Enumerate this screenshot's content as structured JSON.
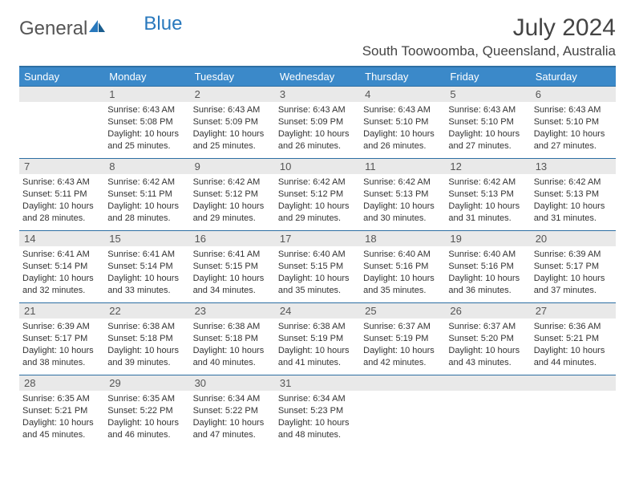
{
  "logo": {
    "text1": "General",
    "text2": "Blue"
  },
  "title": "July 2024",
  "location": "South Toowoomba, Queensland, Australia",
  "colors": {
    "header_bg": "#3b89c9",
    "header_border": "#2d6fa3",
    "daynum_bg": "#e9e9e9",
    "text": "#333333",
    "logo_gray": "#555555",
    "logo_blue": "#2878bd"
  },
  "day_headers": [
    "Sunday",
    "Monday",
    "Tuesday",
    "Wednesday",
    "Thursday",
    "Friday",
    "Saturday"
  ],
  "weeks": [
    [
      {
        "num": "",
        "sunrise": "",
        "sunset": "",
        "daylight": ""
      },
      {
        "num": "1",
        "sunrise": "Sunrise: 6:43 AM",
        "sunset": "Sunset: 5:08 PM",
        "daylight": "Daylight: 10 hours and 25 minutes."
      },
      {
        "num": "2",
        "sunrise": "Sunrise: 6:43 AM",
        "sunset": "Sunset: 5:09 PM",
        "daylight": "Daylight: 10 hours and 25 minutes."
      },
      {
        "num": "3",
        "sunrise": "Sunrise: 6:43 AM",
        "sunset": "Sunset: 5:09 PM",
        "daylight": "Daylight: 10 hours and 26 minutes."
      },
      {
        "num": "4",
        "sunrise": "Sunrise: 6:43 AM",
        "sunset": "Sunset: 5:10 PM",
        "daylight": "Daylight: 10 hours and 26 minutes."
      },
      {
        "num": "5",
        "sunrise": "Sunrise: 6:43 AM",
        "sunset": "Sunset: 5:10 PM",
        "daylight": "Daylight: 10 hours and 27 minutes."
      },
      {
        "num": "6",
        "sunrise": "Sunrise: 6:43 AM",
        "sunset": "Sunset: 5:10 PM",
        "daylight": "Daylight: 10 hours and 27 minutes."
      }
    ],
    [
      {
        "num": "7",
        "sunrise": "Sunrise: 6:43 AM",
        "sunset": "Sunset: 5:11 PM",
        "daylight": "Daylight: 10 hours and 28 minutes."
      },
      {
        "num": "8",
        "sunrise": "Sunrise: 6:42 AM",
        "sunset": "Sunset: 5:11 PM",
        "daylight": "Daylight: 10 hours and 28 minutes."
      },
      {
        "num": "9",
        "sunrise": "Sunrise: 6:42 AM",
        "sunset": "Sunset: 5:12 PM",
        "daylight": "Daylight: 10 hours and 29 minutes."
      },
      {
        "num": "10",
        "sunrise": "Sunrise: 6:42 AM",
        "sunset": "Sunset: 5:12 PM",
        "daylight": "Daylight: 10 hours and 29 minutes."
      },
      {
        "num": "11",
        "sunrise": "Sunrise: 6:42 AM",
        "sunset": "Sunset: 5:13 PM",
        "daylight": "Daylight: 10 hours and 30 minutes."
      },
      {
        "num": "12",
        "sunrise": "Sunrise: 6:42 AM",
        "sunset": "Sunset: 5:13 PM",
        "daylight": "Daylight: 10 hours and 31 minutes."
      },
      {
        "num": "13",
        "sunrise": "Sunrise: 6:42 AM",
        "sunset": "Sunset: 5:13 PM",
        "daylight": "Daylight: 10 hours and 31 minutes."
      }
    ],
    [
      {
        "num": "14",
        "sunrise": "Sunrise: 6:41 AM",
        "sunset": "Sunset: 5:14 PM",
        "daylight": "Daylight: 10 hours and 32 minutes."
      },
      {
        "num": "15",
        "sunrise": "Sunrise: 6:41 AM",
        "sunset": "Sunset: 5:14 PM",
        "daylight": "Daylight: 10 hours and 33 minutes."
      },
      {
        "num": "16",
        "sunrise": "Sunrise: 6:41 AM",
        "sunset": "Sunset: 5:15 PM",
        "daylight": "Daylight: 10 hours and 34 minutes."
      },
      {
        "num": "17",
        "sunrise": "Sunrise: 6:40 AM",
        "sunset": "Sunset: 5:15 PM",
        "daylight": "Daylight: 10 hours and 35 minutes."
      },
      {
        "num": "18",
        "sunrise": "Sunrise: 6:40 AM",
        "sunset": "Sunset: 5:16 PM",
        "daylight": "Daylight: 10 hours and 35 minutes."
      },
      {
        "num": "19",
        "sunrise": "Sunrise: 6:40 AM",
        "sunset": "Sunset: 5:16 PM",
        "daylight": "Daylight: 10 hours and 36 minutes."
      },
      {
        "num": "20",
        "sunrise": "Sunrise: 6:39 AM",
        "sunset": "Sunset: 5:17 PM",
        "daylight": "Daylight: 10 hours and 37 minutes."
      }
    ],
    [
      {
        "num": "21",
        "sunrise": "Sunrise: 6:39 AM",
        "sunset": "Sunset: 5:17 PM",
        "daylight": "Daylight: 10 hours and 38 minutes."
      },
      {
        "num": "22",
        "sunrise": "Sunrise: 6:38 AM",
        "sunset": "Sunset: 5:18 PM",
        "daylight": "Daylight: 10 hours and 39 minutes."
      },
      {
        "num": "23",
        "sunrise": "Sunrise: 6:38 AM",
        "sunset": "Sunset: 5:18 PM",
        "daylight": "Daylight: 10 hours and 40 minutes."
      },
      {
        "num": "24",
        "sunrise": "Sunrise: 6:38 AM",
        "sunset": "Sunset: 5:19 PM",
        "daylight": "Daylight: 10 hours and 41 minutes."
      },
      {
        "num": "25",
        "sunrise": "Sunrise: 6:37 AM",
        "sunset": "Sunset: 5:19 PM",
        "daylight": "Daylight: 10 hours and 42 minutes."
      },
      {
        "num": "26",
        "sunrise": "Sunrise: 6:37 AM",
        "sunset": "Sunset: 5:20 PM",
        "daylight": "Daylight: 10 hours and 43 minutes."
      },
      {
        "num": "27",
        "sunrise": "Sunrise: 6:36 AM",
        "sunset": "Sunset: 5:21 PM",
        "daylight": "Daylight: 10 hours and 44 minutes."
      }
    ],
    [
      {
        "num": "28",
        "sunrise": "Sunrise: 6:35 AM",
        "sunset": "Sunset: 5:21 PM",
        "daylight": "Daylight: 10 hours and 45 minutes."
      },
      {
        "num": "29",
        "sunrise": "Sunrise: 6:35 AM",
        "sunset": "Sunset: 5:22 PM",
        "daylight": "Daylight: 10 hours and 46 minutes."
      },
      {
        "num": "30",
        "sunrise": "Sunrise: 6:34 AM",
        "sunset": "Sunset: 5:22 PM",
        "daylight": "Daylight: 10 hours and 47 minutes."
      },
      {
        "num": "31",
        "sunrise": "Sunrise: 6:34 AM",
        "sunset": "Sunset: 5:23 PM",
        "daylight": "Daylight: 10 hours and 48 minutes."
      },
      {
        "num": "",
        "sunrise": "",
        "sunset": "",
        "daylight": ""
      },
      {
        "num": "",
        "sunrise": "",
        "sunset": "",
        "daylight": ""
      },
      {
        "num": "",
        "sunrise": "",
        "sunset": "",
        "daylight": ""
      }
    ]
  ]
}
